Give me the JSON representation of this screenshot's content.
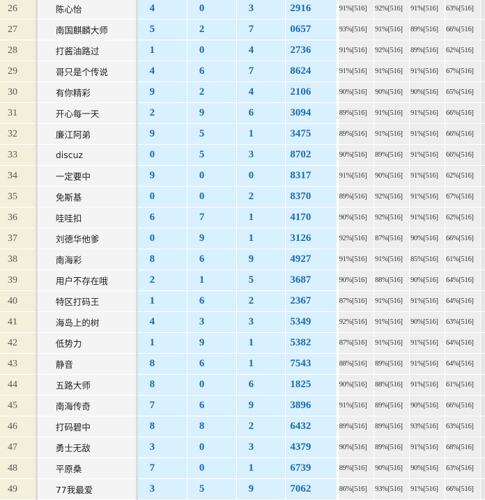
{
  "rows": [
    {
      "rank": "26",
      "name": "陈心怡",
      "d1": "4",
      "d2": "0",
      "d3": "3",
      "num": "2916",
      "p": [
        "91%[516]",
        "92%[516]",
        "91%[516]",
        "63%[516]"
      ]
    },
    {
      "rank": "27",
      "name": "南国麒麟大师",
      "d1": "5",
      "d2": "2",
      "d3": "7",
      "num": "0657",
      "p": [
        "93%[516]",
        "91%[516]",
        "89%[516]",
        "66%[516]"
      ]
    },
    {
      "rank": "28",
      "name": "打酱油路过",
      "d1": "1",
      "d2": "0",
      "d3": "4",
      "num": "2736",
      "p": [
        "91%[516]",
        "92%[516]",
        "89%[516]",
        "62%[516]"
      ]
    },
    {
      "rank": "29",
      "name": "哥只是个传说",
      "d1": "4",
      "d2": "6",
      "d3": "7",
      "num": "8624",
      "p": [
        "91%[516]",
        "91%[516]",
        "91%[516]",
        "67%[516]"
      ]
    },
    {
      "rank": "30",
      "name": "有你精彩",
      "d1": "9",
      "d2": "2",
      "d3": "4",
      "num": "2106",
      "p": [
        "90%[516]",
        "90%[516]",
        "90%[516]",
        "65%[516]"
      ]
    },
    {
      "rank": "31",
      "name": "开心每一天",
      "d1": "2",
      "d2": "9",
      "d3": "6",
      "num": "3094",
      "p": [
        "89%[516]",
        "91%[516]",
        "91%[516]",
        "66%[516]"
      ]
    },
    {
      "rank": "32",
      "name": "廉江阿弟",
      "d1": "9",
      "d2": "5",
      "d3": "1",
      "num": "3475",
      "p": [
        "89%[516]",
        "91%[516]",
        "91%[516]",
        "66%[516]"
      ]
    },
    {
      "rank": "33",
      "name": "discuz",
      "d1": "0",
      "d2": "5",
      "d3": "3",
      "num": "8702",
      "p": [
        "90%[516]",
        "89%[516]",
        "91%[516]",
        "66%[516]"
      ]
    },
    {
      "rank": "34",
      "name": "一定要中",
      "d1": "9",
      "d2": "0",
      "d3": "0",
      "num": "8317",
      "p": [
        "91%[516]",
        "90%[516]",
        "91%[516]",
        "62%[516]"
      ]
    },
    {
      "rank": "35",
      "name": "免斯基",
      "d1": "0",
      "d2": "0",
      "d3": "2",
      "num": "8370",
      "p": [
        "89%[516]",
        "92%[516]",
        "91%[516]",
        "67%[516]"
      ]
    },
    {
      "rank": "36",
      "name": "哇哇扣",
      "d1": "6",
      "d2": "7",
      "d3": "1",
      "num": "4170",
      "p": [
        "90%[516]",
        "92%[516]",
        "91%[516]",
        "62%[516]"
      ]
    },
    {
      "rank": "37",
      "name": "刘德华他爹",
      "d1": "0",
      "d2": "9",
      "d3": "1",
      "num": "3126",
      "p": [
        "92%[516]",
        "87%[516]",
        "90%[516]",
        "66%[516]"
      ]
    },
    {
      "rank": "38",
      "name": "南海彩",
      "d1": "8",
      "d2": "6",
      "d3": "9",
      "num": "4927",
      "p": [
        "91%[516]",
        "91%[516]",
        "85%[516]",
        "61%[516]"
      ]
    },
    {
      "rank": "39",
      "name": "用户不存在哦",
      "d1": "2",
      "d2": "1",
      "d3": "5",
      "num": "3687",
      "p": [
        "90%[516]",
        "88%[516]",
        "90%[516]",
        "64%[516]"
      ]
    },
    {
      "rank": "40",
      "name": "特区打码王",
      "d1": "1",
      "d2": "6",
      "d3": "2",
      "num": "2367",
      "p": [
        "87%[516]",
        "91%[516]",
        "91%[516]",
        "64%[516]"
      ]
    },
    {
      "rank": "41",
      "name": "海岛上的树",
      "d1": "4",
      "d2": "3",
      "d3": "3",
      "num": "5349",
      "p": [
        "92%[516]",
        "91%[516]",
        "90%[516]",
        "63%[516]"
      ]
    },
    {
      "rank": "42",
      "name": "低势力",
      "d1": "1",
      "d2": "9",
      "d3": "1",
      "num": "5382",
      "p": [
        "87%[516]",
        "91%[516]",
        "91%[516]",
        "64%[516]"
      ]
    },
    {
      "rank": "43",
      "name": "静音",
      "d1": "8",
      "d2": "6",
      "d3": "1",
      "num": "7543",
      "p": [
        "88%[516]",
        "89%[516]",
        "91%[516]",
        "64%[516]"
      ]
    },
    {
      "rank": "44",
      "name": "五路大师",
      "d1": "8",
      "d2": "0",
      "d3": "6",
      "num": "1825",
      "p": [
        "90%[516]",
        "88%[516]",
        "91%[516]",
        "61%[516]"
      ]
    },
    {
      "rank": "45",
      "name": "南海传奇",
      "d1": "7",
      "d2": "6",
      "d3": "9",
      "num": "3896",
      "p": [
        "91%[516]",
        "89%[516]",
        "90%[516]",
        "66%[516]"
      ]
    },
    {
      "rank": "46",
      "name": "打码碧中",
      "d1": "8",
      "d2": "8",
      "d3": "2",
      "num": "6432",
      "p": [
        "89%[516]",
        "89%[516]",
        "93%[516]",
        "63%[516]"
      ]
    },
    {
      "rank": "47",
      "name": "勇士无敌",
      "d1": "3",
      "d2": "0",
      "d3": "3",
      "num": "4379",
      "p": [
        "90%[516]",
        "89%[516]",
        "91%[516]",
        "68%[516]"
      ]
    },
    {
      "rank": "48",
      "name": "平原桑",
      "d1": "7",
      "d2": "0",
      "d3": "1",
      "num": "6739",
      "p": [
        "89%[516]",
        "90%[516]",
        "90%[516]",
        "63%[516]"
      ]
    },
    {
      "rank": "49",
      "name": "77我最爱",
      "d1": "3",
      "d2": "5",
      "d3": "9",
      "num": "7062",
      "p": [
        "86%[516]",
        "93%[516]",
        "91%[516]",
        "66%[516]"
      ]
    }
  ]
}
